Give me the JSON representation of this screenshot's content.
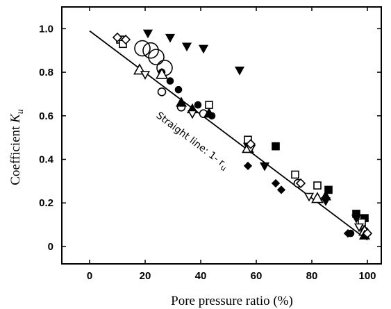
{
  "chart_data": {
    "type": "scatter",
    "xlabel": "Pore pressure ratio (%)",
    "ylabel_prefix": "Coefficient ",
    "ylabel_symbol": "K",
    "ylabel_subscript": "u",
    "xlim": [
      -10,
      105
    ],
    "ylim": [
      -0.08,
      1.1
    ],
    "xticks": [
      0,
      20,
      40,
      60,
      80,
      100
    ],
    "yticks": [
      0,
      0.2,
      0.4,
      0.6,
      0.8,
      1.0
    ],
    "xtick_labels": [
      "0",
      "20",
      "40",
      "60",
      "80",
      "100"
    ],
    "ytick_labels": [
      "0",
      "0.2",
      "0.4",
      "0.6",
      "0.8",
      "1.0"
    ],
    "grid": false,
    "legend": "none",
    "reference_line": {
      "label_prefix": "Straight line: 1- r",
      "label_subscript": "u",
      "points": [
        [
          0,
          0.99
        ],
        [
          100,
          0.03
        ]
      ]
    },
    "series": [
      {
        "marker": "triangle-down-filled",
        "points": [
          [
            21,
            0.98
          ],
          [
            29,
            0.96
          ],
          [
            35,
            0.92
          ],
          [
            41,
            0.91
          ],
          [
            54,
            0.81
          ],
          [
            57,
            0.46
          ],
          [
            63,
            0.37
          ],
          [
            85,
            0.21
          ],
          [
            96,
            0.13
          ]
        ]
      },
      {
        "marker": "circle-filled",
        "points": [
          [
            26,
            0.8
          ],
          [
            29,
            0.76
          ],
          [
            32,
            0.72
          ],
          [
            39,
            0.65
          ],
          [
            44,
            0.6
          ],
          [
            94,
            0.06
          ]
        ]
      },
      {
        "marker": "circle-open-large",
        "points": [
          [
            19,
            0.91
          ],
          [
            22,
            0.9
          ],
          [
            24,
            0.87
          ],
          [
            27,
            0.82
          ]
        ]
      },
      {
        "marker": "circle-open",
        "points": [
          [
            26,
            0.71
          ],
          [
            33,
            0.64
          ],
          [
            41,
            0.61
          ],
          [
            75,
            0.29
          ],
          [
            99,
            0.07
          ]
        ]
      },
      {
        "marker": "diamond-filled",
        "points": [
          [
            57,
            0.37
          ],
          [
            67,
            0.29
          ],
          [
            69,
            0.26
          ],
          [
            93,
            0.06
          ]
        ]
      },
      {
        "marker": "square-filled",
        "points": [
          [
            67,
            0.46
          ],
          [
            86,
            0.26
          ],
          [
            96,
            0.15
          ],
          [
            99,
            0.13
          ]
        ]
      },
      {
        "marker": "square-open",
        "points": [
          [
            11,
            0.95
          ],
          [
            12,
            0.93
          ],
          [
            43,
            0.65
          ],
          [
            57,
            0.49
          ],
          [
            74,
            0.33
          ],
          [
            82,
            0.28
          ],
          [
            98,
            0.11
          ]
        ]
      },
      {
        "marker": "triangle-up-open",
        "points": [
          [
            18,
            0.81
          ],
          [
            26,
            0.79
          ],
          [
            57,
            0.45
          ],
          [
            82,
            0.22
          ],
          [
            99,
            0.07
          ]
        ]
      },
      {
        "marker": "triangle-up-filled",
        "points": [
          [
            33,
            0.66
          ],
          [
            37,
            0.63
          ],
          [
            43,
            0.61
          ],
          [
            85,
            0.23
          ],
          [
            99,
            0.05
          ]
        ]
      },
      {
        "marker": "triangle-down-open",
        "points": [
          [
            20,
            0.79
          ],
          [
            37,
            0.61
          ],
          [
            58,
            0.45
          ],
          [
            79,
            0.23
          ],
          [
            97,
            0.09
          ]
        ]
      },
      {
        "marker": "diamond-open",
        "points": [
          [
            10,
            0.96
          ],
          [
            13,
            0.95
          ],
          [
            58,
            0.47
          ],
          [
            76,
            0.29
          ],
          [
            100,
            0.06
          ]
        ]
      }
    ]
  }
}
